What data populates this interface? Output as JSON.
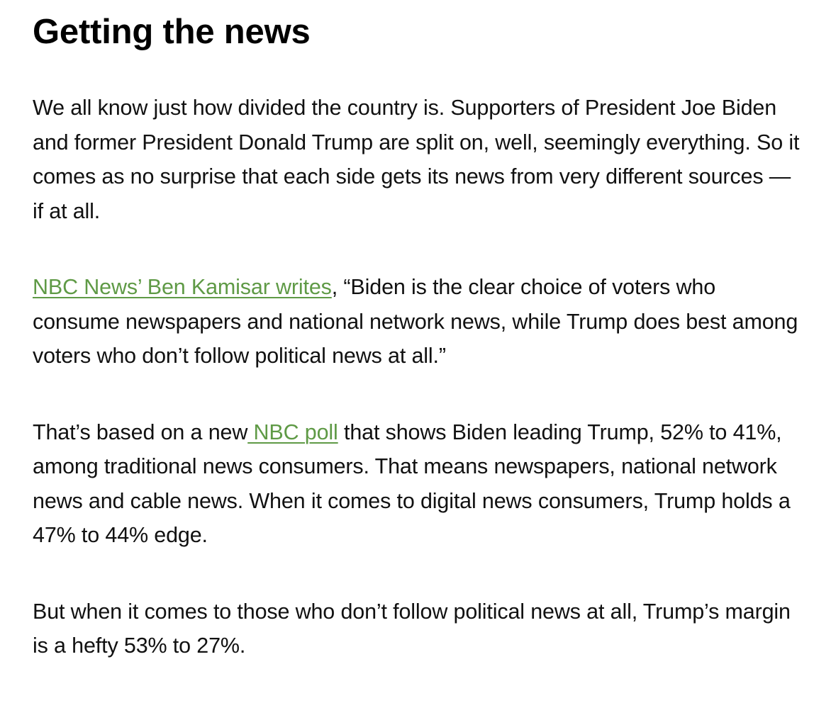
{
  "article": {
    "title": "Getting the news",
    "p1": "We all know just how divided the country is. Supporters of President Joe Biden and former President Donald Trump are split on, well, seemingly everything. So it comes as no surprise that each side gets its news from very different sources — if at all.",
    "p2": {
      "link": "NBC News’ Ben Kamisar writes",
      "text": ", “Biden is the clear choice of voters who consume newspapers and national network news, while Trump does best among voters who don’t follow political news at all.”"
    },
    "p3": {
      "before": "That’s based on a new",
      "link": " NBC poll",
      "after": " that shows Biden leading Trump, 52% to 41%, among traditional news consumers. That means newspapers, national network news and cable news. When it comes to digital news consumers, Trump holds a 47% to 44% edge."
    },
    "p4": "But when it comes to those who don’t follow political news at all, Trump’s margin is a hefty 53% to 27%."
  },
  "colors": {
    "link": "#5f9a46",
    "text": "#111111",
    "background": "#ffffff"
  }
}
